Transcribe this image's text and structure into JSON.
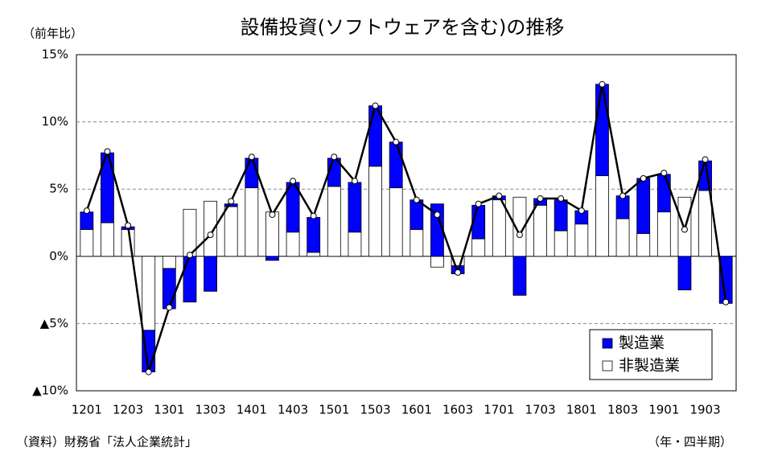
{
  "chart_data": {
    "type": "stacked_bar_line",
    "title": "設備投資(ソフトウェアを含む)の推移",
    "y_axis_label": "（前年比）",
    "x_axis_label": "（年・四半期）",
    "source": "（資料）財務省「法人企業統計」",
    "categories": [
      "1201",
      null,
      "1203",
      null,
      "1301",
      null,
      "1303",
      null,
      "1401",
      null,
      "1403",
      null,
      "1501",
      null,
      "1503",
      null,
      "1601",
      null,
      "1603",
      null,
      "1701",
      null,
      "1703",
      null,
      "1801",
      null,
      "1803",
      null,
      "1901",
      null,
      "1903",
      null
    ],
    "series": [
      {
        "name": "非製造業",
        "color": "#ffffff",
        "values": [
          2.0,
          2.5,
          2.0,
          -5.5,
          -0.9,
          3.5,
          4.1,
          3.7,
          5.1,
          3.3,
          1.8,
          0.3,
          5.2,
          1.8,
          6.7,
          5.1,
          2.0,
          -0.8,
          -0.7,
          1.3,
          4.2,
          4.4,
          3.8,
          1.9,
          2.4,
          6.0,
          2.8,
          1.7,
          3.3,
          4.4,
          4.9,
          0
        ]
      },
      {
        "name": "製造業",
        "color": "#0000ff",
        "values": [
          1.3,
          5.2,
          0.2,
          -3.1,
          -3.0,
          -3.4,
          -2.6,
          0.2,
          2.2,
          -0.3,
          3.7,
          2.6,
          2.1,
          3.7,
          4.5,
          3.4,
          2.2,
          3.9,
          -0.6,
          2.5,
          0.3,
          -2.9,
          0.5,
          2.3,
          1.0,
          6.8,
          1.7,
          4.1,
          2.8,
          -2.5,
          2.2,
          -3.5
        ]
      }
    ],
    "line": {
      "color": "#000000",
      "values": [
        3.4,
        7.8,
        2.3,
        -8.6,
        -3.8,
        0.1,
        1.6,
        4.1,
        7.4,
        3.1,
        5.6,
        3.0,
        7.4,
        5.6,
        11.2,
        8.5,
        4.2,
        3.1,
        -1.2,
        3.9,
        4.5,
        1.6,
        4.3,
        4.3,
        3.4,
        12.8,
        4.5,
        5.8,
        6.2,
        2.0,
        7.2,
        -3.4
      ]
    },
    "ylim": [
      -10,
      15
    ],
    "yticks": [
      {
        "value": -10,
        "label": "▲10%"
      },
      {
        "value": -5,
        "label": "▲5%"
      },
      {
        "value": 0,
        "label": "0%"
      },
      {
        "value": 5,
        "label": "5%"
      },
      {
        "value": 10,
        "label": "10%"
      },
      {
        "value": 15,
        "label": "15%"
      }
    ],
    "grid": true,
    "legend": "lower right"
  }
}
